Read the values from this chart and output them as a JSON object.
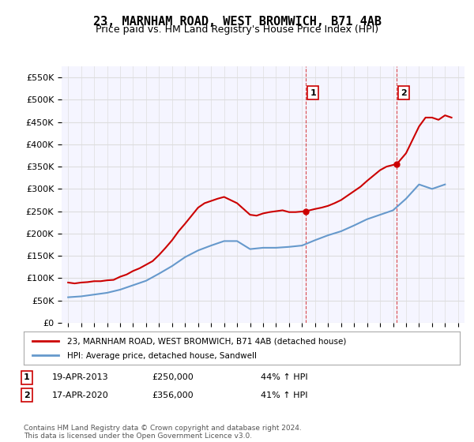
{
  "title": "23, MARNHAM ROAD, WEST BROMWICH, B71 4AB",
  "subtitle": "Price paid vs. HM Land Registry's House Price Index (HPI)",
  "legend_line1": "23, MARNHAM ROAD, WEST BROMWICH, B71 4AB (detached house)",
  "legend_line2": "HPI: Average price, detached house, Sandwell",
  "annotation1": {
    "label": "1",
    "date": "19-APR-2013",
    "price": "£250,000",
    "hpi": "44% ↑ HPI",
    "year": 2013.3
  },
  "annotation2": {
    "label": "2",
    "date": "17-APR-2020",
    "price": "£356,000",
    "hpi": "41% ↑ HPI",
    "year": 2020.3
  },
  "footer": "Contains HM Land Registry data © Crown copyright and database right 2024.\nThis data is licensed under the Open Government Licence v3.0.",
  "red_color": "#cc0000",
  "blue_color": "#6699cc",
  "grid_color": "#dddddd",
  "background_color": "#ffffff",
  "plot_bg_color": "#f5f5ff",
  "ylim": [
    0,
    575000
  ],
  "yticks": [
    0,
    50000,
    100000,
    150000,
    200000,
    250000,
    300000,
    350000,
    400000,
    450000,
    500000,
    550000
  ],
  "xlim": [
    1994.5,
    2025.5
  ],
  "xticks": [
    1995,
    1996,
    1997,
    1998,
    1999,
    2000,
    2001,
    2002,
    2003,
    2004,
    2005,
    2006,
    2007,
    2008,
    2009,
    2010,
    2011,
    2012,
    2013,
    2014,
    2015,
    2016,
    2017,
    2018,
    2019,
    2020,
    2021,
    2022,
    2023,
    2024,
    2025
  ],
  "hpi_years": [
    1995,
    1996,
    1997,
    1998,
    1999,
    2000,
    2001,
    2002,
    2003,
    2004,
    2005,
    2006,
    2007,
    2008,
    2009,
    2010,
    2011,
    2012,
    2013,
    2014,
    2015,
    2016,
    2017,
    2018,
    2019,
    2020,
    2021,
    2022,
    2023,
    2024
  ],
  "hpi_values": [
    57000,
    59000,
    63000,
    67000,
    74000,
    84000,
    94000,
    110000,
    127000,
    147000,
    162000,
    173000,
    183000,
    183000,
    165000,
    168000,
    168000,
    170000,
    173000,
    185000,
    196000,
    205000,
    218000,
    232000,
    242000,
    252000,
    278000,
    310000,
    300000,
    310000
  ],
  "price_years": [
    1995.0,
    1995.5,
    1996.0,
    1996.5,
    1997.0,
    1997.5,
    1998.0,
    1998.5,
    1999.0,
    1999.5,
    2000.0,
    2000.5,
    2001.0,
    2001.5,
    2002.0,
    2002.5,
    2003.0,
    2003.5,
    2004.0,
    2004.5,
    2005.0,
    2005.5,
    2006.0,
    2006.5,
    2007.0,
    2007.5,
    2008.0,
    2008.5,
    2009.0,
    2009.5,
    2010.0,
    2010.5,
    2011.0,
    2011.5,
    2012.0,
    2012.5,
    2013.3,
    2014.0,
    2014.5,
    2015.0,
    2015.5,
    2016.0,
    2016.5,
    2017.0,
    2017.5,
    2018.0,
    2018.5,
    2019.0,
    2019.5,
    2020.3,
    2021.0,
    2021.5,
    2022.0,
    2022.5,
    2023.0,
    2023.5,
    2024.0,
    2024.5
  ],
  "price_values": [
    90000,
    88000,
    90000,
    91000,
    93000,
    93000,
    95000,
    96000,
    103000,
    108000,
    116000,
    122000,
    130000,
    138000,
    152000,
    168000,
    185000,
    205000,
    222000,
    240000,
    258000,
    268000,
    273000,
    278000,
    282000,
    275000,
    268000,
    255000,
    242000,
    240000,
    245000,
    248000,
    250000,
    252000,
    248000,
    248000,
    250000,
    255000,
    258000,
    262000,
    268000,
    275000,
    285000,
    295000,
    305000,
    318000,
    330000,
    342000,
    350000,
    356000,
    380000,
    410000,
    440000,
    460000,
    460000,
    455000,
    465000,
    460000
  ]
}
